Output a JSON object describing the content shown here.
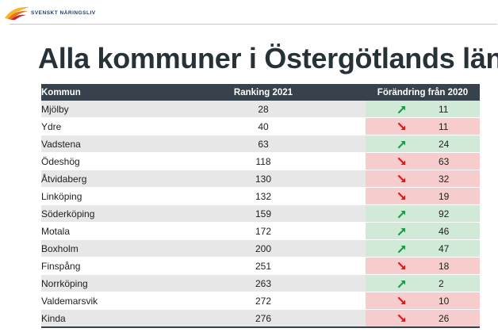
{
  "brand": {
    "name": "SVENSKT NÄRINGSLIV",
    "logo_icon": "bird-wing-icon",
    "logo_colors": [
      "#f7b52c",
      "#e8731c",
      "#c8202f"
    ]
  },
  "title": "Alla kommuner i Östergötlands län",
  "table": {
    "headers": {
      "kommun": "Kommun",
      "ranking": "Ranking 2021",
      "change": "Förändring från 2020"
    },
    "colors": {
      "header_bg": "#37424c",
      "up_bg": "#d1e9d7",
      "down_bg": "#f6cccc",
      "up_arrow": "#1f9a4b",
      "down_arrow": "#e0191c",
      "shade_row": "#e7e7e7"
    },
    "rows": [
      {
        "kommun": "Mjölby",
        "ranking": "28",
        "direction": "up",
        "arrow_icon": "arrow-up-right-icon",
        "change": "11"
      },
      {
        "kommun": "Ydre",
        "ranking": "40",
        "direction": "down",
        "arrow_icon": "arrow-down-right-icon",
        "change": "11"
      },
      {
        "kommun": "Vadstena",
        "ranking": "63",
        "direction": "up",
        "arrow_icon": "arrow-up-right-icon",
        "change": "24"
      },
      {
        "kommun": "Ödeshög",
        "ranking": "118",
        "direction": "down",
        "arrow_icon": "arrow-down-right-icon",
        "change": "63"
      },
      {
        "kommun": "Åtvidaberg",
        "ranking": "130",
        "direction": "down",
        "arrow_icon": "arrow-down-right-icon",
        "change": "32"
      },
      {
        "kommun": "Linköping",
        "ranking": "132",
        "direction": "down",
        "arrow_icon": "arrow-down-right-icon",
        "change": "19"
      },
      {
        "kommun": "Söderköping",
        "ranking": "159",
        "direction": "up",
        "arrow_icon": "arrow-up-right-icon",
        "change": "92"
      },
      {
        "kommun": "Motala",
        "ranking": "172",
        "direction": "up",
        "arrow_icon": "arrow-up-right-icon",
        "change": "46"
      },
      {
        "kommun": "Boxholm",
        "ranking": "200",
        "direction": "up",
        "arrow_icon": "arrow-up-right-icon",
        "change": "47"
      },
      {
        "kommun": "Finspång",
        "ranking": "251",
        "direction": "down",
        "arrow_icon": "arrow-down-right-icon",
        "change": "18"
      },
      {
        "kommun": "Norrköping",
        "ranking": "263",
        "direction": "up",
        "arrow_icon": "arrow-up-right-icon",
        "change": "2"
      },
      {
        "kommun": "Valdemarsvik",
        "ranking": "272",
        "direction": "down",
        "arrow_icon": "arrow-down-right-icon",
        "change": "10"
      },
      {
        "kommun": "Kinda",
        "ranking": "276",
        "direction": "down",
        "arrow_icon": "arrow-down-right-icon",
        "change": "26"
      }
    ]
  }
}
